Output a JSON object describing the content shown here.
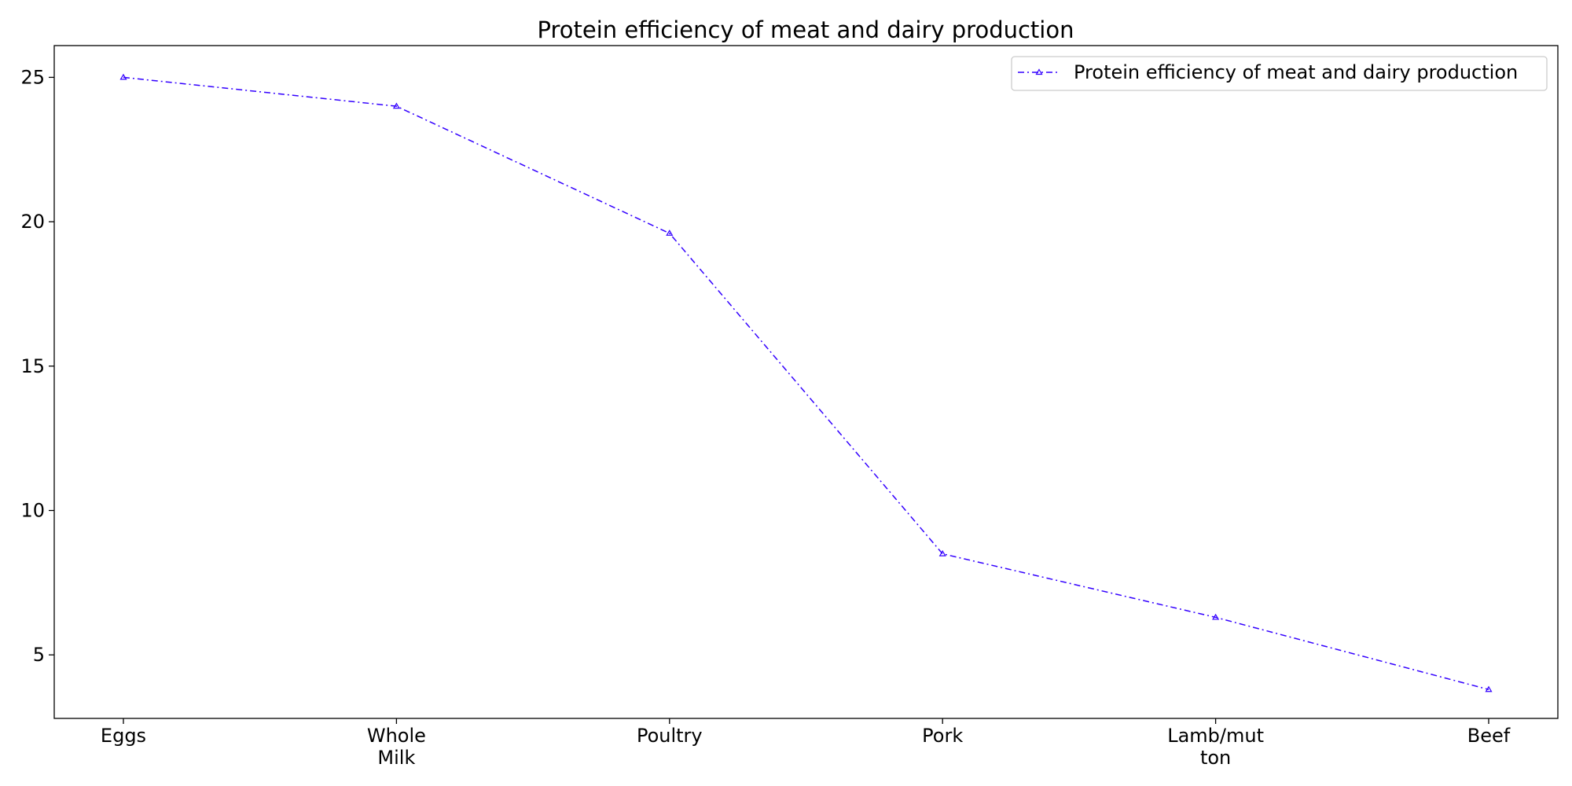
{
  "chart_data": {
    "type": "line",
    "title": "Protein efficiency of meat and dairy production",
    "xlabel": "",
    "ylabel": "",
    "categories": [
      "Eggs",
      "Whole Milk",
      "Poultry",
      "Pork",
      "Lamb/mutton",
      "Beef"
    ],
    "category_tick_lines": [
      [
        "Eggs"
      ],
      [
        "Whole",
        "Milk"
      ],
      [
        "Poultry"
      ],
      [
        "Pork"
      ],
      [
        "Lamb/mut",
        "ton"
      ],
      [
        "Beef"
      ]
    ],
    "series": [
      {
        "name": "Protein efficiency of meat and dairy production",
        "values": [
          25,
          24,
          19.6,
          8.5,
          6.3,
          3.8
        ],
        "color": "#3300ff",
        "line_style": "dash-dot",
        "marker": "triangle-up"
      }
    ],
    "ylim": [
      2.8,
      26.1
    ],
    "yticks": [
      5,
      10,
      15,
      20,
      25
    ],
    "grid": false,
    "legend_position": "top-right"
  }
}
